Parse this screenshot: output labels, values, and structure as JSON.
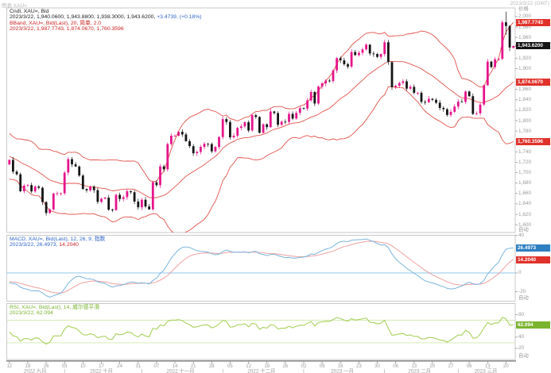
{
  "window": {
    "top_left": "图表 XAU=",
    "top_right": "2023/3/22 (GMT)"
  },
  "axis": {
    "auto": "自动"
  },
  "main_panel": {
    "axis_title": "价格",
    "header": {
      "line1": "Cndl, XAU=, Bid",
      "line2_ohlc": "2023/3/22, 1,940.0600, 1,943.8800, 1,938.3000, 1,943.6200, ",
      "line2_change": "+3.4739, (+0.18%)",
      "line3": "BBand, XAU=, Bid(Last), 20, 简单, 2.0",
      "line4": "2023/3/22, 1,987.7743, 1,874.0670, 1,760.3596"
    },
    "badges": [
      {
        "label": "1,987.7743",
        "value": 1987.7743,
        "type": "red"
      },
      {
        "label": "1,943.6200",
        "value": 1943.62,
        "type": "black"
      },
      {
        "label": "1,874.0670",
        "value": 1874.067,
        "type": "red"
      },
      {
        "label": "1,760.3596",
        "value": 1760.3596,
        "type": "red"
      }
    ],
    "ticks": [
      {
        "t": "2,000",
        "v": 2000
      },
      {
        "t": "1,980",
        "v": 1980
      },
      {
        "t": "1,960",
        "v": 1960
      },
      {
        "t": "1,920",
        "v": 1920
      },
      {
        "t": "1,900",
        "v": 1900
      },
      {
        "t": "1,860",
        "v": 1860
      },
      {
        "t": "1,840",
        "v": 1840
      },
      {
        "t": "1,820",
        "v": 1820
      },
      {
        "t": "1,800",
        "v": 1800
      },
      {
        "t": "1,780",
        "v": 1780
      },
      {
        "t": "1,740",
        "v": 1740
      },
      {
        "t": "1,720",
        "v": 1720
      },
      {
        "t": "1,700",
        "v": 1700
      },
      {
        "t": "1,680",
        "v": 1680
      },
      {
        "t": "1,660",
        "v": 1660
      },
      {
        "t": "1,640",
        "v": 1640
      },
      {
        "t": "1,620",
        "v": 1620
      },
      {
        "t": "1,600",
        "v": 1600
      }
    ]
  },
  "macd_panel": {
    "header": {
      "line1": "MACD, XAU=, Bid(Last), 12, 26, 9, 指数",
      "line2_left": "2023/3/22, 26.4973, ",
      "line2_right": "14.2040"
    },
    "badges": [
      {
        "label": "26.4973",
        "value": 26.4973,
        "type": "blue"
      },
      {
        "label": "14.2040",
        "value": 14.204,
        "type": "red"
      }
    ],
    "ticks": [
      {
        "t": "40",
        "v": 40
      },
      {
        "t": "0",
        "v": 0
      },
      {
        "t": "-20",
        "v": -20
      }
    ]
  },
  "rsi_panel": {
    "header": {
      "line1": "RSI, XAU=, Bid(Last), 14, 威尔德平滑",
      "line2": "2023/3/22, 62.094"
    },
    "badges": [
      {
        "label": "62.094",
        "value": 62.094,
        "type": "green"
      }
    ],
    "ticks": [
      {
        "t": "80",
        "v": 80
      },
      {
        "t": "40",
        "v": 40
      },
      {
        "t": "20",
        "v": 20
      }
    ]
  },
  "time_axis": {
    "months": [
      {
        "label": "2022 九月",
        "m": "2022-09",
        "days": [
          "12",
          "19",
          "26"
        ]
      },
      {
        "label": "2022 十月",
        "m": "2022-10",
        "days": [
          "03",
          "10",
          "17",
          "24",
          "31"
        ]
      },
      {
        "label": "2022 十一月",
        "m": "2022-11",
        "days": [
          "07",
          "14",
          "21",
          "28"
        ]
      },
      {
        "label": "2022 十二月",
        "m": "2022-12",
        "days": [
          "05",
          "12",
          "19",
          "26"
        ]
      },
      {
        "label": "2023 一月",
        "m": "2023-01",
        "days": [
          "02",
          "09",
          "16",
          "23",
          "30"
        ]
      },
      {
        "label": "2023 二月",
        "m": "2023-02",
        "days": [
          "06",
          "13",
          "20",
          "27"
        ]
      },
      {
        "label": "2023 三月",
        "m": "2023-03",
        "days": [
          "06",
          "13",
          "20"
        ]
      }
    ]
  },
  "colors": {
    "up": "#e6148b",
    "down": "#141414",
    "bband": "#e0524a",
    "macd_line": "#7ab4dc",
    "signal_line": "#efa0a0",
    "macd_zero": "#aed6ef",
    "rsi_line": "#a0cc4e",
    "rsi_ref": "#cfe8ad",
    "badge_red": "#e0322a",
    "badge_black": "#141414",
    "badge_blue": "#2e7fc2",
    "badge_green": "#7ab32e",
    "header_black": "#222222",
    "header_red": "#cc2222",
    "header_blue": "#2d63c8",
    "header_green": "#7ab32e",
    "axis_text": "#9a9a9a",
    "frame": "#c8c8c8",
    "axis_line": "#8c8c8c",
    "corner_text": "#b9b9b9",
    "last_dot": "#b03026"
  },
  "chart_data": {
    "type": "candlestick+indicators",
    "instrument": "XAU=",
    "interval": "daily",
    "title": "Cndl, XAU=, Bid",
    "legend_position": "top-left-of-each-panel",
    "grid": false,
    "y_axis": {
      "min": 1585,
      "max": 2016.6,
      "tick_step": 20,
      "label": "价格"
    },
    "macd_axis": {
      "min": -30,
      "max": 40
    },
    "rsi_axis": {
      "min": 0,
      "max": 100,
      "ref_lines": [
        70,
        30
      ]
    },
    "bollinger": {
      "period": 20,
      "type": "简单",
      "stdev": 2.0,
      "last": {
        "upper": 1987.7743,
        "middle": 1874.067,
        "lower": 1760.3596
      }
    },
    "macd": {
      "fast": 12,
      "slow": 26,
      "signal": 9,
      "last": {
        "macd": 26.4973,
        "signal": 14.204
      }
    },
    "rsi": {
      "period": 14,
      "method": "威尔德平滑",
      "last": 62.094
    },
    "last_candle": {
      "date": "2023/3/22",
      "open": 1940.06,
      "high": 1943.88,
      "low": 1938.3,
      "close": 1943.62,
      "change": 3.4739,
      "change_pct": 0.18
    },
    "lead_in_closes": [
      1719,
      1717,
      1734,
      1755,
      1762,
      1766,
      1772,
      1765,
      1776,
      1789,
      1775,
      1788,
      1794,
      1792,
      1781,
      1780,
      1775,
      1762,
      1759,
      1747,
      1736,
      1748,
      1751,
      1758,
      1738,
      1737,
      1723,
      1711,
      1697,
      1712,
      1710,
      1701,
      1718,
      1708,
      1716
    ],
    "candles": [
      [
        "2022-09-12",
        1724.5
      ],
      [
        "2022-09-13",
        1702
      ],
      [
        "2022-09-14",
        1697
      ],
      [
        "2022-09-15",
        1664.5
      ],
      [
        "2022-09-16",
        1675
      ],
      [
        "2022-09-19",
        1676
      ],
      [
        "2022-09-20",
        1664
      ],
      [
        "2022-09-21",
        1673.5
      ],
      [
        "2022-09-22",
        1671
      ],
      [
        "2022-09-23",
        1643.5
      ],
      [
        "2022-09-26",
        1622.5
      ],
      [
        "2022-09-27",
        1629.5
      ],
      [
        "2022-09-28",
        1660
      ],
      [
        "2022-09-29",
        1660.5
      ],
      [
        "2022-09-30",
        1660.5
      ],
      [
        "2022-10-03",
        1700
      ],
      [
        "2022-10-04",
        1726
      ],
      [
        "2022-10-05",
        1716
      ],
      [
        "2022-10-06",
        1712
      ],
      [
        "2022-10-07",
        1694.5
      ],
      [
        "2022-10-10",
        1668.5
      ],
      [
        "2022-10-11",
        1666
      ],
      [
        "2022-10-12",
        1673
      ],
      [
        "2022-10-13",
        1666.5
      ],
      [
        "2022-10-14",
        1644
      ],
      [
        "2022-10-17",
        1650
      ],
      [
        "2022-10-18",
        1652
      ],
      [
        "2022-10-19",
        1629
      ],
      [
        "2022-10-20",
        1628
      ],
      [
        "2022-10-21",
        1657.5
      ],
      [
        "2022-10-24",
        1649.5
      ],
      [
        "2022-10-25",
        1653
      ],
      [
        "2022-10-26",
        1664.5
      ],
      [
        "2022-10-27",
        1662.5
      ],
      [
        "2022-10-28",
        1644.5
      ],
      [
        "2022-10-31",
        1633.5
      ],
      [
        "2022-11-01",
        1648
      ],
      [
        "2022-11-02",
        1635
      ],
      [
        "2022-11-03",
        1629.5
      ],
      [
        "2022-11-04",
        1681.5
      ],
      [
        "2022-11-07",
        1676
      ],
      [
        "2022-11-08",
        1712
      ],
      [
        "2022-11-09",
        1706.5
      ],
      [
        "2022-11-10",
        1755
      ],
      [
        "2022-11-11",
        1771
      ],
      [
        "2022-11-14",
        1771
      ],
      [
        "2022-11-15",
        1778.5
      ],
      [
        "2022-11-16",
        1773.5
      ],
      [
        "2022-11-17",
        1760.5
      ],
      [
        "2022-11-18",
        1751
      ],
      [
        "2022-11-21",
        1737.5
      ],
      [
        "2022-11-22",
        1740
      ],
      [
        "2022-11-23",
        1749.5
      ],
      [
        "2022-11-24",
        1755.5
      ],
      [
        "2022-11-25",
        1755
      ],
      [
        "2022-11-28",
        1741
      ],
      [
        "2022-11-29",
        1749.5
      ],
      [
        "2022-11-30",
        1768.5
      ],
      [
        "2022-12-01",
        1803
      ],
      [
        "2022-12-02",
        1797.5
      ],
      [
        "2022-12-05",
        1768
      ],
      [
        "2022-12-06",
        1771
      ],
      [
        "2022-12-07",
        1786
      ],
      [
        "2022-12-08",
        1789
      ],
      [
        "2022-12-09",
        1797
      ],
      [
        "2022-12-12",
        1781
      ],
      [
        "2022-12-13",
        1810.5
      ],
      [
        "2022-12-14",
        1807
      ],
      [
        "2022-12-15",
        1776.5
      ],
      [
        "2022-12-16",
        1793
      ],
      [
        "2022-12-19",
        1787.5
      ],
      [
        "2022-12-20",
        1817.5
      ],
      [
        "2022-12-21",
        1814.5
      ],
      [
        "2022-12-22",
        1792
      ],
      [
        "2022-12-23",
        1798
      ],
      [
        "2022-12-26",
        1797.5
      ],
      [
        "2022-12-27",
        1813
      ],
      [
        "2022-12-28",
        1804
      ],
      [
        "2022-12-29",
        1815
      ],
      [
        "2022-12-30",
        1824
      ],
      [
        "2023-01-02",
        1823.5
      ],
      [
        "2023-01-03",
        1839
      ],
      [
        "2023-01-04",
        1855
      ],
      [
        "2023-01-05",
        1833
      ],
      [
        "2023-01-06",
        1865.5
      ],
      [
        "2023-01-09",
        1871.5
      ],
      [
        "2023-01-10",
        1877
      ],
      [
        "2023-01-11",
        1876
      ],
      [
        "2023-01-12",
        1896.5
      ],
      [
        "2023-01-13",
        1920
      ],
      [
        "2023-01-16",
        1916
      ],
      [
        "2023-01-17",
        1908.5
      ],
      [
        "2023-01-18",
        1904
      ],
      [
        "2023-01-19",
        1932
      ],
      [
        "2023-01-20",
        1926
      ],
      [
        "2023-01-23",
        1930.5
      ],
      [
        "2023-01-24",
        1937
      ],
      [
        "2023-01-25",
        1946
      ],
      [
        "2023-01-26",
        1929
      ],
      [
        "2023-01-27",
        1928
      ],
      [
        "2023-01-30",
        1922.5
      ],
      [
        "2023-01-31",
        1928
      ],
      [
        "2023-02-01",
        1950.5
      ],
      [
        "2023-02-02",
        1912.5
      ],
      [
        "2023-02-03",
        1864.5
      ],
      [
        "2023-02-06",
        1867
      ],
      [
        "2023-02-07",
        1872.5
      ],
      [
        "2023-02-08",
        1875.5
      ],
      [
        "2023-02-09",
        1861.5
      ],
      [
        "2023-02-10",
        1865
      ],
      [
        "2023-02-13",
        1853.5
      ],
      [
        "2023-02-14",
        1853.5
      ],
      [
        "2023-02-15",
        1836
      ],
      [
        "2023-02-16",
        1835.5
      ],
      [
        "2023-02-17",
        1842
      ],
      [
        "2023-02-20",
        1840
      ],
      [
        "2023-02-21",
        1834.5
      ],
      [
        "2023-02-22",
        1824.5
      ],
      [
        "2023-02-23",
        1822
      ],
      [
        "2023-02-24",
        1811
      ],
      [
        "2023-02-27",
        1817
      ],
      [
        "2023-02-28",
        1827
      ],
      [
        "2023-03-01",
        1836.5
      ],
      [
        "2023-03-02",
        1836
      ],
      [
        "2023-03-03",
        1856
      ],
      [
        "2023-03-06",
        1847
      ],
      [
        "2023-03-07",
        1813
      ],
      [
        "2023-03-08",
        1814
      ],
      [
        "2023-03-09",
        1831
      ],
      [
        "2023-03-10",
        1868
      ],
      [
        "2023-03-13",
        1913.5
      ],
      [
        "2023-03-14",
        1903
      ],
      [
        "2023-03-15",
        1918
      ],
      [
        "2023-03-16",
        1919
      ],
      [
        "2023-03-17",
        1989
      ],
      [
        "2023-03-20",
        1982
      ],
      [
        "2023-03-21",
        1940.5
      ],
      [
        "2023-03-22",
        1943.62
      ]
    ],
    "overrides": {
      "2023-03-17": {
        "h": 1993.0,
        "l": 1916.0
      },
      "2023-03-20": {
        "h": 2009.5,
        "l": 1965.0
      },
      "2023-03-21": {
        "h": 1984.0,
        "l": 1934.0
      },
      "2023-03-22": {
        "o": 1940.06,
        "h": 1943.88,
        "l": 1938.3,
        "c": 1943.62
      }
    }
  }
}
